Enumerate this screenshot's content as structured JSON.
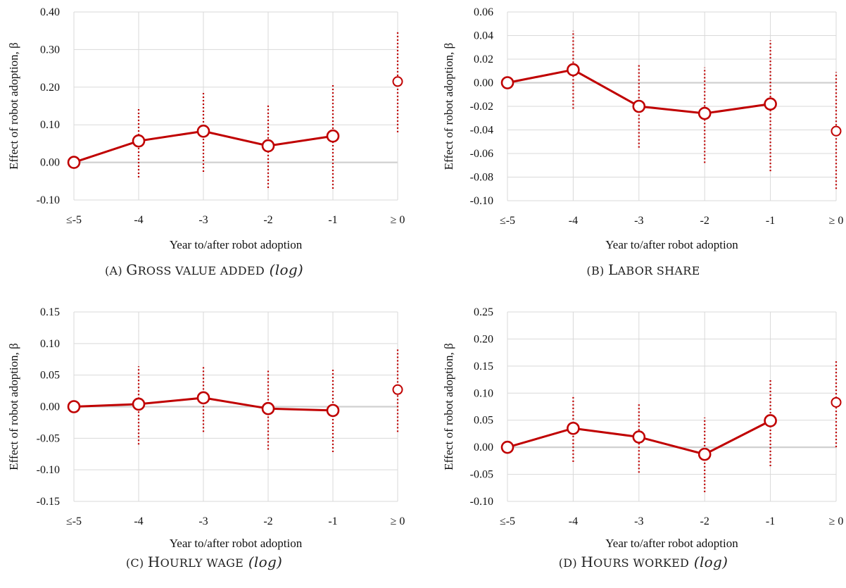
{
  "chart_data": [
    {
      "id": "a",
      "type": "line",
      "caption": {
        "prefix": "(A)",
        "title_first": "G",
        "title_rest": "ROSS VALUE ADDED",
        "suffix": "(log)"
      },
      "categories": [
        "≤-5",
        "-4",
        "-3",
        "-2",
        "-1",
        "≥ 0"
      ],
      "series": [
        {
          "values": [
            0.0,
            0.057,
            0.083,
            0.044,
            0.07,
            0.215
          ]
        }
      ],
      "ci_low": [
        null,
        -0.04,
        -0.025,
        -0.068,
        -0.07,
        0.08
      ],
      "ci_high": [
        null,
        0.145,
        0.187,
        0.153,
        0.207,
        0.348
      ],
      "connected_points": 5,
      "xlabel": "Year to/after robot adoption",
      "ylabel": "Effect of robot adoption, β",
      "ylim": [
        -0.1,
        0.4
      ],
      "yticks": [
        "-0.10",
        "0.00",
        "0.10",
        "0.20",
        "0.30",
        "0.40"
      ],
      "ytick_values": [
        -0.1,
        0.0,
        0.1,
        0.2,
        0.3,
        0.4
      ],
      "grid": true
    },
    {
      "id": "b",
      "type": "line",
      "caption": {
        "prefix": "(B)",
        "title_first": "L",
        "title_rest": "ABOR SHARE",
        "suffix": ""
      },
      "categories": [
        "≤-5",
        "-4",
        "-3",
        "-2",
        "-1",
        "≥ 0"
      ],
      "series": [
        {
          "values": [
            0.0,
            0.011,
            -0.02,
            -0.026,
            -0.018,
            -0.041
          ]
        }
      ],
      "ci_low": [
        null,
        -0.022,
        -0.055,
        -0.068,
        -0.075,
        -0.09
      ],
      "ci_high": [
        null,
        0.044,
        0.015,
        0.013,
        0.036,
        0.009
      ],
      "connected_points": 5,
      "xlabel": "Year to/after robot adoption",
      "ylabel": "Effect of robot adoption, β",
      "ylim": [
        -0.1,
        0.06
      ],
      "yticks": [
        "-0.10",
        "-0.08",
        "-0.06",
        "-0.04",
        "-0.02",
        "0.00",
        "0.02",
        "0.04",
        "0.06"
      ],
      "ytick_values": [
        -0.1,
        -0.08,
        -0.06,
        -0.04,
        -0.02,
        0.0,
        0.02,
        0.04,
        0.06
      ],
      "grid": true
    },
    {
      "id": "c",
      "type": "line",
      "caption": {
        "prefix": "(C)",
        "title_first": "H",
        "title_rest": "OURLY WAGE",
        "suffix": "(log)"
      },
      "categories": [
        "≤-5",
        "-4",
        "-3",
        "-2",
        "-1",
        "≥ 0"
      ],
      "series": [
        {
          "values": [
            0.0,
            0.004,
            0.014,
            -0.003,
            -0.006,
            0.027
          ]
        }
      ],
      "ci_low": [
        null,
        -0.06,
        -0.04,
        -0.068,
        -0.072,
        -0.04
      ],
      "ci_high": [
        null,
        0.064,
        0.063,
        0.057,
        0.06,
        0.093
      ],
      "connected_points": 5,
      "xlabel": "Year to/after robot adoption",
      "ylabel": "Effect of robot adoption, β",
      "ylim": [
        -0.15,
        0.15
      ],
      "yticks": [
        "-0.15",
        "-0.10",
        "-0.05",
        "0.00",
        "0.05",
        "0.10",
        "0.15"
      ],
      "ytick_values": [
        -0.15,
        -0.1,
        -0.05,
        0.0,
        0.05,
        0.1,
        0.15
      ],
      "grid": true
    },
    {
      "id": "d",
      "type": "line",
      "caption": {
        "prefix": "(D)",
        "title_first": "H",
        "title_rest": "OURS WORKED",
        "suffix": "(log)"
      },
      "categories": [
        "≤-5",
        "-4",
        "-3",
        "-2",
        "-1",
        "≥ 0"
      ],
      "series": [
        {
          "values": [
            0.0,
            0.035,
            0.019,
            -0.013,
            0.049,
            0.083
          ]
        }
      ],
      "ci_low": [
        null,
        -0.027,
        -0.047,
        -0.083,
        -0.035,
        0.0
      ],
      "ci_high": [
        null,
        0.096,
        0.083,
        0.055,
        0.127,
        0.162
      ],
      "connected_points": 5,
      "xlabel": "Year to/after robot adoption",
      "ylabel": "Effect of robot adoption, β",
      "ylim": [
        -0.1,
        0.25
      ],
      "yticks": [
        "-0.10",
        "-0.05",
        "0.00",
        "0.05",
        "0.10",
        "0.15",
        "0.20",
        "0.25"
      ],
      "ytick_values": [
        -0.1,
        -0.05,
        0.0,
        0.05,
        0.1,
        0.15,
        0.2,
        0.25
      ],
      "grid": true
    }
  ],
  "colors": {
    "line": "#c00000",
    "grid": "#d9d9d9",
    "zero_line": "#d0d0d0",
    "text": "#111111"
  }
}
